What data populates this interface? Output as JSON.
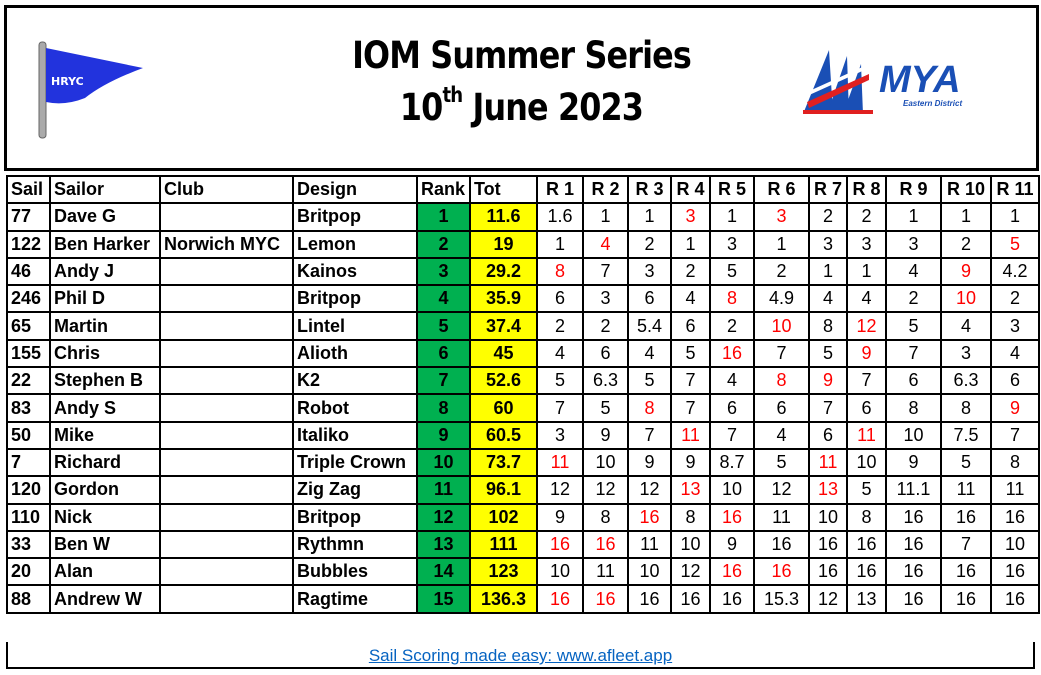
{
  "header": {
    "title_line1": "IOM Summer Series",
    "title_day": "10",
    "title_day_suffix": "th",
    "title_rest": " June 2023",
    "left_logo": {
      "text": "HRYC",
      "color": "#2233dd"
    },
    "right_logo": {
      "text": "MYA",
      "subtext": "Eastern District",
      "color": "#1a4fb5"
    }
  },
  "colors": {
    "rank_bg": "#00b050",
    "tot_bg": "#ffff00",
    "discard": "#ff0000",
    "link": "#0563c1"
  },
  "table": {
    "columns": [
      "Sail",
      "Sailor",
      "Club",
      "Design",
      "Rank",
      "Tot",
      "R 1",
      "R 2",
      "R 3",
      "R 4",
      "R 5",
      "R 6",
      "R 7",
      "R 8",
      "R 9",
      "R 10",
      "R 11"
    ],
    "rows": [
      {
        "sail": "77",
        "sailor": "Dave G",
        "club": "",
        "design": "Britpop",
        "rank": "1",
        "tot": "11.6",
        "races": [
          "1.6",
          "1",
          "1",
          "3",
          "1",
          "3",
          "2",
          "2",
          "1",
          "1",
          "1"
        ],
        "discards": [
          3,
          5
        ]
      },
      {
        "sail": "122",
        "sailor": "Ben Harker",
        "club": "Norwich MYC",
        "design": "Lemon",
        "rank": "2",
        "tot": "19",
        "races": [
          "1",
          "4",
          "2",
          "1",
          "3",
          "1",
          "3",
          "3",
          "3",
          "2",
          "5"
        ],
        "discards": [
          1,
          10
        ]
      },
      {
        "sail": "46",
        "sailor": "Andy J",
        "club": "",
        "design": "Kainos",
        "rank": "3",
        "tot": "29.2",
        "races": [
          "8",
          "7",
          "3",
          "2",
          "5",
          "2",
          "1",
          "1",
          "4",
          "9",
          "4.2"
        ],
        "discards": [
          0,
          9
        ]
      },
      {
        "sail": "246",
        "sailor": "Phil D",
        "club": "",
        "design": "Britpop",
        "rank": "4",
        "tot": "35.9",
        "races": [
          "6",
          "3",
          "6",
          "4",
          "8",
          "4.9",
          "4",
          "4",
          "2",
          "10",
          "2"
        ],
        "discards": [
          4,
          9
        ]
      },
      {
        "sail": "65",
        "sailor": "Martin",
        "club": "",
        "design": "Lintel",
        "rank": "5",
        "tot": "37.4",
        "races": [
          "2",
          "2",
          "5.4",
          "6",
          "2",
          "10",
          "8",
          "12",
          "5",
          "4",
          "3"
        ],
        "discards": [
          5,
          7
        ]
      },
      {
        "sail": "155",
        "sailor": "Chris",
        "club": "",
        "design": "Alioth",
        "rank": "6",
        "tot": "45",
        "races": [
          "4",
          "6",
          "4",
          "5",
          "16",
          "7",
          "5",
          "9",
          "7",
          "3",
          "4"
        ],
        "discards": [
          4,
          7
        ]
      },
      {
        "sail": "22",
        "sailor": "Stephen B",
        "club": "",
        "design": "K2",
        "rank": "7",
        "tot": "52.6",
        "races": [
          "5",
          "6.3",
          "5",
          "7",
          "4",
          "8",
          "9",
          "7",
          "6",
          "6.3",
          "6"
        ],
        "discards": [
          5,
          6
        ]
      },
      {
        "sail": "83",
        "sailor": "Andy S",
        "club": "",
        "design": "Robot",
        "rank": "8",
        "tot": "60",
        "races": [
          "7",
          "5",
          "8",
          "7",
          "6",
          "6",
          "7",
          "6",
          "8",
          "8",
          "9"
        ],
        "discards": [
          2,
          10
        ]
      },
      {
        "sail": "50",
        "sailor": "Mike",
        "club": "",
        "design": "Italiko",
        "rank": "9",
        "tot": "60.5",
        "races": [
          "3",
          "9",
          "7",
          "11",
          "7",
          "4",
          "6",
          "11",
          "10",
          "7.5",
          "7"
        ],
        "discards": [
          3,
          7
        ]
      },
      {
        "sail": "7",
        "sailor": "Richard",
        "club": "",
        "design": "Triple Crown",
        "rank": "10",
        "tot": "73.7",
        "races": [
          "11",
          "10",
          "9",
          "9",
          "8.7",
          "5",
          "11",
          "10",
          "9",
          "5",
          "8"
        ],
        "discards": [
          0,
          6
        ]
      },
      {
        "sail": "120",
        "sailor": "Gordon",
        "club": "",
        "design": "Zig Zag",
        "rank": "11",
        "tot": "96.1",
        "races": [
          "12",
          "12",
          "12",
          "13",
          "10",
          "12",
          "13",
          "5",
          "11.1",
          "11",
          "11"
        ],
        "discards": [
          3,
          6
        ]
      },
      {
        "sail": "110",
        "sailor": "Nick",
        "club": "",
        "design": "Britpop",
        "rank": "12",
        "tot": "102",
        "races": [
          "9",
          "8",
          "16",
          "8",
          "16",
          "11",
          "10",
          "8",
          "16",
          "16",
          "16"
        ],
        "discards": [
          2,
          4
        ]
      },
      {
        "sail": "33",
        "sailor": "Ben W",
        "club": "",
        "design": "Rythmn",
        "rank": "13",
        "tot": "111",
        "races": [
          "16",
          "16",
          "11",
          "10",
          "9",
          "16",
          "16",
          "16",
          "16",
          "7",
          "10"
        ],
        "discards": [
          0,
          1
        ]
      },
      {
        "sail": "20",
        "sailor": "Alan",
        "club": "",
        "design": "Bubbles",
        "rank": "14",
        "tot": "123",
        "races": [
          "10",
          "11",
          "10",
          "12",
          "16",
          "16",
          "16",
          "16",
          "16",
          "16",
          "16"
        ],
        "discards": [
          4,
          5
        ]
      },
      {
        "sail": "88",
        "sailor": "Andrew W",
        "club": "",
        "design": "Ragtime",
        "rank": "15",
        "tot": "136.3",
        "races": [
          "16",
          "16",
          "16",
          "16",
          "16",
          "15.3",
          "12",
          "13",
          "16",
          "16",
          "16"
        ],
        "discards": [
          0,
          1
        ]
      }
    ]
  },
  "footer": {
    "link_text": "Sail Scoring made easy: www.afleet.app"
  }
}
